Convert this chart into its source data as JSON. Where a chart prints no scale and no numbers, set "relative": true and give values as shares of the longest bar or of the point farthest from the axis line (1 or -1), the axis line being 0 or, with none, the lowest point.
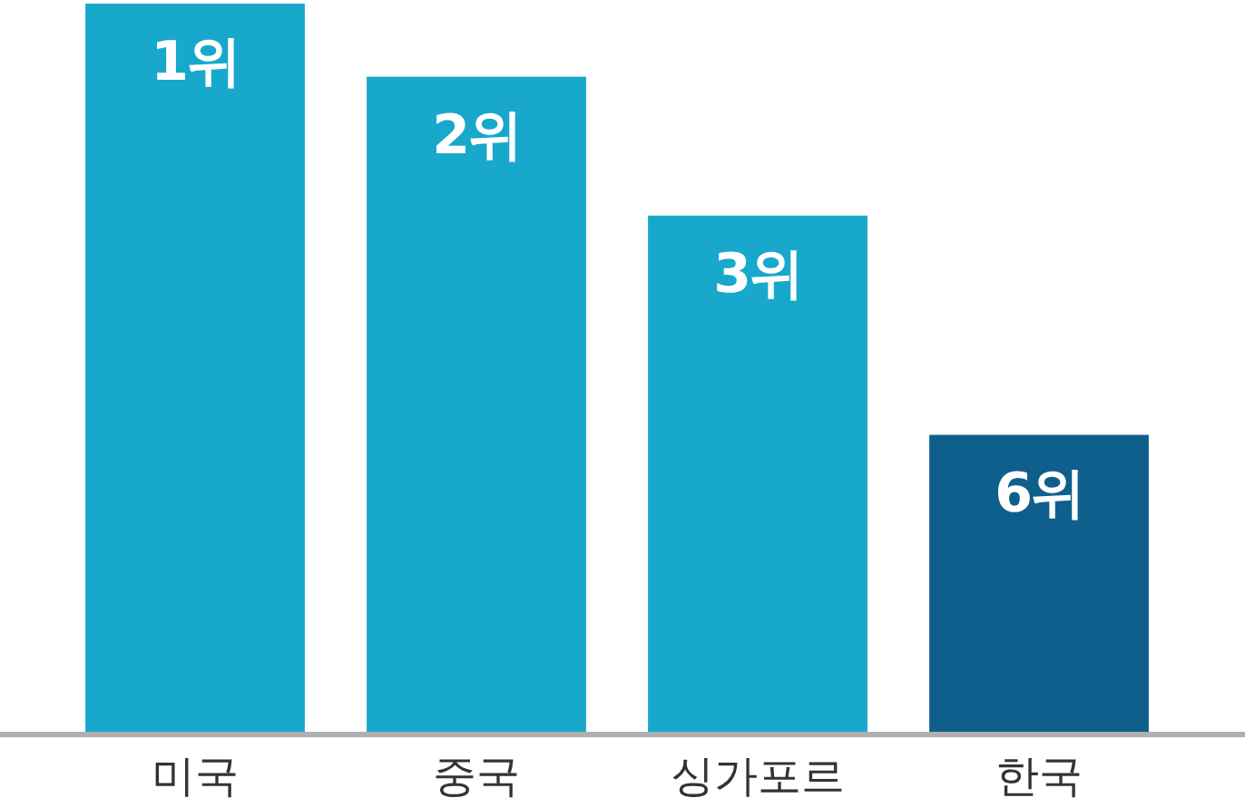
{
  "chart_data": {
    "type": "bar",
    "relative": true,
    "categories": [
      "미국",
      "중국",
      "싱가포르",
      "한국"
    ],
    "values": [
      1,
      0.9,
      0.71,
      0.41
    ],
    "colors": [
      "#17a8cc",
      "#17a8cc",
      "#17a8cc",
      "#0f5f8c"
    ],
    "annotations": [
      {
        "text": "1위",
        "x": "미국",
        "y": 1
      },
      {
        "text": "2위",
        "x": "중국",
        "y": 0.9
      },
      {
        "text": "3위",
        "x": "싱가포르",
        "y": 0.71
      },
      {
        "text": "6위",
        "x": "한국",
        "y": 0.41
      }
    ]
  }
}
